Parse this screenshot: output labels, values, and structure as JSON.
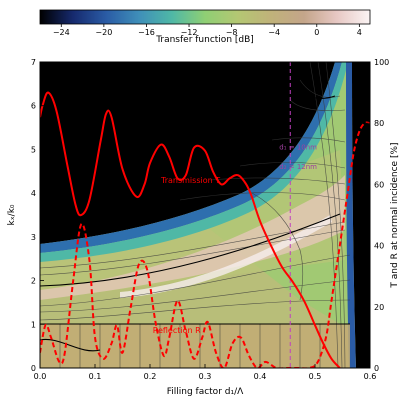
{
  "chart_data": {
    "type": "heatmap",
    "colorbar": {
      "label": "Transfer function [dB]",
      "range": [
        -26,
        5
      ],
      "ticks": [
        -24,
        -20,
        -16,
        -12,
        -8,
        -4,
        0,
        4
      ],
      "tick_labels": [
        "−24",
        "−20",
        "−16",
        "−12",
        "−8",
        "−4",
        "0",
        "4"
      ],
      "colormap": [
        "#000000",
        "#162a6e",
        "#2a5ba5",
        "#3f8fb9",
        "#4fb8a6",
        "#8fcf74",
        "#b4c773",
        "#c0b27a",
        "#c4a58a",
        "#e7c8c4",
        "#fbf4f4"
      ],
      "placement": "top"
    },
    "xlabel": "Filling factor d₁/Λ",
    "ylabel": "kₓ/k₀",
    "y2label": "T and R at normal incidence [%]",
    "xlim": [
      0.0,
      0.6
    ],
    "ylim": [
      0,
      7
    ],
    "y2lim": [
      0,
      100
    ],
    "x_ticks": [
      0.0,
      0.1,
      0.2,
      0.3,
      0.4,
      0.5,
      0.6
    ],
    "x_tick_labels": [
      "0.0",
      "0.1",
      "0.2",
      "0.3",
      "0.4",
      "0.5",
      "0.6"
    ],
    "y_ticks": [
      0,
      1,
      2,
      3,
      4,
      5,
      6,
      7
    ],
    "y_tick_labels": [
      "0",
      "1",
      "2",
      "3",
      "4",
      "5",
      "6",
      "7"
    ],
    "y2_ticks": [
      0,
      20,
      40,
      60,
      80,
      100
    ],
    "y2_tick_labels": [
      "0",
      "20",
      "40",
      "60",
      "80",
      "100"
    ],
    "dashed_vertical_line": {
      "x": 0.455,
      "color": "#c040c0"
    },
    "annotations": [
      {
        "text": "d₁ = 10nm",
        "x": 0.435,
        "y": 5.0,
        "color": "#a040a0"
      },
      {
        "text": "d₂ = 12nm",
        "x": 0.435,
        "y": 4.55,
        "color": "#a040a0"
      }
    ],
    "series": [
      {
        "name": "Transmission T",
        "label_pos": {
          "x": 0.22,
          "y2": 60.5
        },
        "axis": "right",
        "style": "solid",
        "color": "#ff0000",
        "x": [
          0.0,
          0.005,
          0.015,
          0.03,
          0.05,
          0.065,
          0.075,
          0.09,
          0.11,
          0.12,
          0.13,
          0.15,
          0.175,
          0.19,
          0.2,
          0.22,
          0.235,
          0.25,
          0.265,
          0.28,
          0.3,
          0.315,
          0.33,
          0.345,
          0.36,
          0.375,
          0.385,
          0.4,
          0.42,
          0.44,
          0.46,
          0.48,
          0.5,
          0.515,
          0.53,
          0.545
        ],
        "y": [
          82,
          86,
          90,
          84,
          66,
          53,
          50,
          55,
          74,
          83,
          82,
          65,
          56,
          60,
          67,
          73,
          69,
          62,
          63,
          72,
          71,
          64,
          60,
          62,
          63,
          60,
          56,
          48,
          40,
          33,
          28,
          22,
          14,
          8,
          3,
          0
        ]
      },
      {
        "name": "Reflection R",
        "label_pos": {
          "x": 0.205,
          "y2": 11.5
        },
        "axis": "right",
        "style": "dashed",
        "color": "#ff0000",
        "x": [
          0.0,
          0.01,
          0.02,
          0.035,
          0.045,
          0.06,
          0.075,
          0.09,
          0.1,
          0.115,
          0.13,
          0.14,
          0.15,
          0.165,
          0.18,
          0.195,
          0.21,
          0.225,
          0.235,
          0.25,
          0.265,
          0.28,
          0.295,
          0.305,
          0.32,
          0.335,
          0.35,
          0.365,
          0.38,
          0.395,
          0.41,
          0.43,
          0.45,
          0.47,
          0.49,
          0.505,
          0.52,
          0.53,
          0.545,
          0.56,
          0.57,
          0.58,
          0.59,
          0.6
        ],
        "y": [
          5,
          14,
          10,
          2,
          5,
          28,
          47,
          35,
          10,
          3,
          8,
          14,
          5,
          20,
          34,
          32,
          15,
          4,
          10,
          22,
          12,
          3,
          10,
          15,
          5,
          0,
          8,
          10,
          4,
          0,
          2,
          0,
          0,
          0,
          0,
          2,
          10,
          22,
          40,
          58,
          70,
          77,
          80,
          80
        ]
      }
    ]
  }
}
